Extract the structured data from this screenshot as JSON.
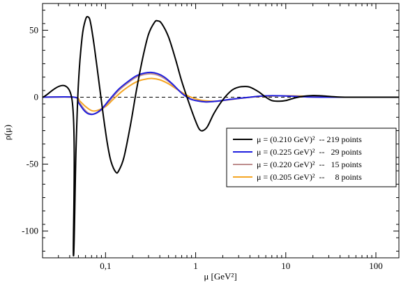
{
  "chart_data": {
    "type": "line",
    "xlabel": "μ [GeV²]",
    "ylabel": "ρ(μ)",
    "xscale": "log",
    "xlim": [
      0.02,
      180
    ],
    "ylim": [
      -120,
      70
    ],
    "grid": false,
    "legend_position": "right",
    "x_ticks": [
      {
        "value": 0.1,
        "label": "0,1"
      },
      {
        "value": 1,
        "label": "1"
      },
      {
        "value": 10,
        "label": "10"
      },
      {
        "value": 100,
        "label": "100"
      }
    ],
    "y_ticks": [
      {
        "value": 50,
        "label": "50"
      },
      {
        "value": 0,
        "label": "0"
      },
      {
        "value": -50,
        "label": "-50"
      },
      {
        "value": -100,
        "label": "-100"
      }
    ],
    "reference_line": {
      "y": 0,
      "style": "dashed"
    },
    "series": [
      {
        "name": "μ = (0.210 GeV)²  -- 219 points",
        "color": "#000000",
        "points": [
          [
            0.02,
            0
          ],
          [
            0.042,
            0
          ],
          [
            0.044,
            -118
          ],
          [
            0.047,
            -40
          ],
          [
            0.05,
            10
          ],
          [
            0.055,
            45
          ],
          [
            0.06,
            58
          ],
          [
            0.064,
            60
          ],
          [
            0.068,
            56
          ],
          [
            0.075,
            38
          ],
          [
            0.085,
            10
          ],
          [
            0.095,
            -15
          ],
          [
            0.105,
            -35
          ],
          [
            0.115,
            -48
          ],
          [
            0.13,
            -56
          ],
          [
            0.14,
            -55
          ],
          [
            0.16,
            -45
          ],
          [
            0.19,
            -20
          ],
          [
            0.22,
            5
          ],
          [
            0.26,
            30
          ],
          [
            0.3,
            47
          ],
          [
            0.35,
            56
          ],
          [
            0.38,
            57
          ],
          [
            0.42,
            55
          ],
          [
            0.5,
            45
          ],
          [
            0.6,
            28
          ],
          [
            0.7,
            12
          ],
          [
            0.85,
            -5
          ],
          [
            1.0,
            -18
          ],
          [
            1.1,
            -24
          ],
          [
            1.2,
            -25
          ],
          [
            1.35,
            -22
          ],
          [
            1.6,
            -12
          ],
          [
            2.0,
            -2
          ],
          [
            2.5,
            5
          ],
          [
            3.0,
            7.5
          ],
          [
            3.5,
            8
          ],
          [
            4.0,
            7.5
          ],
          [
            5.0,
            4
          ],
          [
            6.0,
            0
          ],
          [
            7.0,
            -2.5
          ],
          [
            8.5,
            -3
          ],
          [
            10,
            -2.5
          ],
          [
            12,
            -1
          ],
          [
            15,
            0.5
          ],
          [
            20,
            1.2
          ],
          [
            25,
            1
          ],
          [
            35,
            0.3
          ],
          [
            50,
            0
          ],
          [
            180,
            0
          ]
        ]
      },
      {
        "name": "μ = (0.225 GeV)²  --   29 points",
        "color": "#1f1fdf",
        "points": [
          [
            0.02,
            0
          ],
          [
            0.045,
            0
          ],
          [
            0.05,
            -4
          ],
          [
            0.058,
            -10
          ],
          [
            0.065,
            -12.5
          ],
          [
            0.075,
            -12.5
          ],
          [
            0.09,
            -9
          ],
          [
            0.11,
            -2
          ],
          [
            0.14,
            6
          ],
          [
            0.18,
            12
          ],
          [
            0.22,
            16
          ],
          [
            0.27,
            18
          ],
          [
            0.32,
            18.5
          ],
          [
            0.38,
            17.5
          ],
          [
            0.45,
            15
          ],
          [
            0.55,
            10
          ],
          [
            0.7,
            3
          ],
          [
            0.85,
            -1
          ],
          [
            1.0,
            -2.5
          ],
          [
            1.3,
            -3.5
          ],
          [
            1.7,
            -3
          ],
          [
            2.5,
            -1.5
          ],
          [
            4,
            0
          ],
          [
            6,
            1
          ],
          [
            9,
            1
          ],
          [
            14,
            0.5
          ],
          [
            25,
            0
          ],
          [
            180,
            0
          ]
        ]
      },
      {
        "name": "μ = (0.220 GeV)²  --   15 points",
        "color": "#bf8f8f",
        "points": [
          [
            0.02,
            0
          ],
          [
            0.045,
            0
          ],
          [
            0.05,
            -3
          ],
          [
            0.058,
            -9
          ],
          [
            0.065,
            -12
          ],
          [
            0.075,
            -12.5
          ],
          [
            0.09,
            -9.5
          ],
          [
            0.11,
            -3
          ],
          [
            0.14,
            5
          ],
          [
            0.18,
            11
          ],
          [
            0.22,
            15
          ],
          [
            0.27,
            17
          ],
          [
            0.32,
            17.5
          ],
          [
            0.38,
            16.5
          ],
          [
            0.45,
            14
          ],
          [
            0.55,
            9.5
          ],
          [
            0.7,
            3
          ],
          [
            0.85,
            -1
          ],
          [
            1.0,
            -2.5
          ],
          [
            1.3,
            -3.5
          ],
          [
            1.7,
            -3
          ],
          [
            2.5,
            -1.5
          ],
          [
            4,
            0
          ],
          [
            6,
            1
          ],
          [
            9,
            1
          ],
          [
            14,
            0.5
          ],
          [
            25,
            0
          ],
          [
            180,
            0
          ]
        ]
      },
      {
        "name": "μ = (0.205 GeV)²  --     8 points",
        "color": "#f5a623",
        "points": [
          [
            0.02,
            0
          ],
          [
            0.045,
            0
          ],
          [
            0.052,
            -3
          ],
          [
            0.06,
            -7
          ],
          [
            0.07,
            -10
          ],
          [
            0.08,
            -10
          ],
          [
            0.1,
            -7
          ],
          [
            0.12,
            -2
          ],
          [
            0.15,
            4
          ],
          [
            0.19,
            9
          ],
          [
            0.23,
            12
          ],
          [
            0.28,
            13.5
          ],
          [
            0.33,
            14
          ],
          [
            0.4,
            13
          ],
          [
            0.5,
            10
          ],
          [
            0.65,
            5
          ],
          [
            0.85,
            0.5
          ],
          [
            1.1,
            -2
          ],
          [
            1.5,
            -3
          ],
          [
            2.0,
            -2.5
          ],
          [
            3.0,
            -1
          ],
          [
            5,
            0.5
          ],
          [
            8,
            1
          ],
          [
            12,
            1
          ],
          [
            20,
            0.5
          ],
          [
            40,
            0
          ],
          [
            180,
            0
          ]
        ]
      }
    ]
  }
}
